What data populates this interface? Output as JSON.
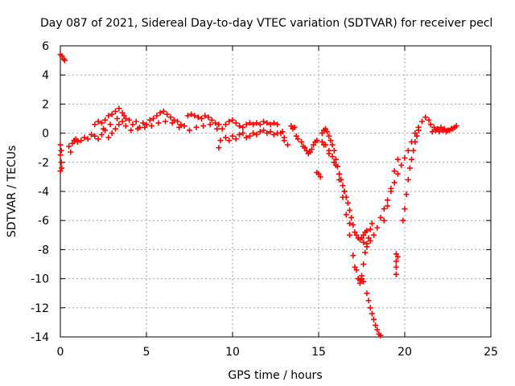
{
  "chart_data": {
    "type": "scatter",
    "title": "Day 087 of 2021, Sidereal Day-to-day VTEC variation (SDTVAR) for receiver pecl",
    "xlabel": "GPS time / hours",
    "ylabel": "SDTVAR / TECUs",
    "xlim": [
      0,
      25
    ],
    "ylim": [
      -14,
      6
    ],
    "x_ticks": [
      0,
      5,
      10,
      15,
      20,
      25
    ],
    "y_ticks": [
      6,
      4,
      2,
      0,
      -2,
      -4,
      -6,
      -8,
      -10,
      -12,
      -14
    ],
    "grid": true,
    "marker": "+",
    "series": [
      {
        "name": "SDTVAR",
        "color": "#ff0000",
        "points": [
          [
            0.0,
            5.4
          ],
          [
            0.1,
            5.3
          ],
          [
            0.2,
            5.1
          ],
          [
            0.25,
            5.0
          ],
          [
            0.0,
            -0.8
          ],
          [
            0.05,
            -1.2
          ],
          [
            0.0,
            -1.5
          ],
          [
            0.05,
            -2.0
          ],
          [
            0.0,
            -2.6
          ],
          [
            0.08,
            -2.4
          ],
          [
            0.5,
            -0.9
          ],
          [
            0.6,
            -1.3
          ],
          [
            0.7,
            -0.7
          ],
          [
            0.8,
            -0.5
          ],
          [
            0.9,
            -0.4
          ],
          [
            1.0,
            -0.6
          ],
          [
            1.2,
            -0.5
          ],
          [
            1.4,
            -0.3
          ],
          [
            1.6,
            -0.4
          ],
          [
            1.8,
            -0.1
          ],
          [
            2.0,
            0.6
          ],
          [
            2.2,
            0.8
          ],
          [
            2.4,
            0.7
          ],
          [
            2.6,
            0.9
          ],
          [
            2.8,
            1.2
          ],
          [
            3.0,
            1.3
          ],
          [
            3.2,
            1.5
          ],
          [
            3.4,
            1.7
          ],
          [
            3.6,
            1.4
          ],
          [
            3.8,
            1.0
          ],
          [
            2.0,
            -0.2
          ],
          [
            2.2,
            -0.4
          ],
          [
            2.4,
            -0.1
          ],
          [
            2.6,
            0.2
          ],
          [
            2.8,
            -0.3
          ],
          [
            3.0,
            0.0
          ],
          [
            3.2,
            0.3
          ],
          [
            3.4,
            0.6
          ],
          [
            3.6,
            0.8
          ],
          [
            3.8,
            0.5
          ],
          [
            2.5,
            0.3
          ],
          [
            2.9,
            0.6
          ],
          [
            3.3,
            1.0
          ],
          [
            3.7,
            1.2
          ],
          [
            4.0,
            0.9
          ],
          [
            4.2,
            0.6
          ],
          [
            4.4,
            0.8
          ],
          [
            4.6,
            0.4
          ],
          [
            4.8,
            0.7
          ],
          [
            5.0,
            0.6
          ],
          [
            5.2,
            0.9
          ],
          [
            5.4,
            1.0
          ],
          [
            5.6,
            1.2
          ],
          [
            5.8,
            1.4
          ],
          [
            6.0,
            1.5
          ],
          [
            6.2,
            1.3
          ],
          [
            6.4,
            1.1
          ],
          [
            6.6,
            0.9
          ],
          [
            6.8,
            0.8
          ],
          [
            7.0,
            0.6
          ],
          [
            7.2,
            0.5
          ],
          [
            4.1,
            0.2
          ],
          [
            4.5,
            0.3
          ],
          [
            4.9,
            0.4
          ],
          [
            5.3,
            0.5
          ],
          [
            5.7,
            0.7
          ],
          [
            6.1,
            0.8
          ],
          [
            6.5,
            0.7
          ],
          [
            6.9,
            0.4
          ],
          [
            7.4,
            1.2
          ],
          [
            7.6,
            1.3
          ],
          [
            7.8,
            1.2
          ],
          [
            8.0,
            1.1
          ],
          [
            8.2,
            1.0
          ],
          [
            8.4,
            1.2
          ],
          [
            8.6,
            1.1
          ],
          [
            8.8,
            0.9
          ],
          [
            9.0,
            0.7
          ],
          [
            9.2,
            0.6
          ],
          [
            7.5,
            0.2
          ],
          [
            7.9,
            0.4
          ],
          [
            8.3,
            0.5
          ],
          [
            8.7,
            0.6
          ],
          [
            9.1,
            0.3
          ],
          [
            9.3,
            -0.5
          ],
          [
            9.2,
            -1.0
          ],
          [
            9.4,
            0.3
          ],
          [
            9.6,
            0.6
          ],
          [
            9.8,
            0.8
          ],
          [
            10.0,
            0.9
          ],
          [
            10.2,
            0.7
          ],
          [
            10.4,
            0.5
          ],
          [
            10.6,
            0.4
          ],
          [
            10.8,
            0.6
          ],
          [
            11.0,
            0.7
          ],
          [
            11.2,
            0.6
          ],
          [
            11.4,
            0.7
          ],
          [
            11.6,
            0.6
          ],
          [
            11.8,
            0.8
          ],
          [
            12.0,
            0.7
          ],
          [
            12.2,
            0.6
          ],
          [
            12.4,
            0.7
          ],
          [
            12.6,
            0.6
          ],
          [
            9.6,
            -0.3
          ],
          [
            9.8,
            -0.5
          ],
          [
            10.0,
            -0.2
          ],
          [
            10.2,
            -0.4
          ],
          [
            10.4,
            -0.1
          ],
          [
            10.6,
            0.0
          ],
          [
            10.8,
            -0.3
          ],
          [
            11.0,
            -0.2
          ],
          [
            11.2,
            0.0
          ],
          [
            11.4,
            -0.1
          ],
          [
            11.6,
            0.1
          ],
          [
            11.8,
            0.2
          ],
          [
            12.0,
            0.0
          ],
          [
            12.2,
            0.1
          ],
          [
            12.4,
            -0.1
          ],
          [
            12.6,
            0.0
          ],
          [
            12.8,
            0.0
          ],
          [
            13.0,
            -0.3
          ],
          [
            12.9,
            0.1
          ],
          [
            13.0,
            -0.5
          ],
          [
            13.2,
            -0.8
          ],
          [
            13.4,
            0.5
          ],
          [
            13.5,
            0.3
          ],
          [
            13.6,
            0.4
          ],
          [
            13.7,
            -0.2
          ],
          [
            13.8,
            -0.4
          ],
          [
            14.0,
            -0.6
          ],
          [
            14.1,
            -0.9
          ],
          [
            14.2,
            -1.0
          ],
          [
            14.3,
            -1.2
          ],
          [
            14.4,
            -1.4
          ],
          [
            14.5,
            -1.3
          ],
          [
            14.6,
            -1.1
          ],
          [
            14.7,
            -0.8
          ],
          [
            14.8,
            -0.6
          ],
          [
            14.9,
            -0.5
          ],
          [
            14.9,
            -2.7
          ],
          [
            15.0,
            -2.8
          ],
          [
            15.1,
            -3.0
          ],
          [
            15.2,
            0.0
          ],
          [
            15.3,
            0.2
          ],
          [
            15.4,
            0.3
          ],
          [
            15.5,
            0.1
          ],
          [
            15.6,
            -0.2
          ],
          [
            15.7,
            -0.5
          ],
          [
            15.8,
            -0.8
          ],
          [
            15.9,
            -1.2
          ],
          [
            16.0,
            -1.8
          ],
          [
            16.1,
            -2.3
          ],
          [
            16.2,
            -2.8
          ],
          [
            16.3,
            -3.2
          ],
          [
            16.4,
            -3.6
          ],
          [
            16.5,
            -4.0
          ],
          [
            16.6,
            -4.4
          ],
          [
            16.7,
            -4.8
          ],
          [
            16.8,
            -5.3
          ],
          [
            16.9,
            -5.8
          ],
          [
            17.0,
            -6.3
          ],
          [
            17.1,
            -6.8
          ],
          [
            17.2,
            -7.0
          ],
          [
            17.3,
            -7.2
          ],
          [
            17.4,
            -7.3
          ],
          [
            17.5,
            -7.2
          ],
          [
            17.6,
            -7.0
          ],
          [
            17.7,
            -6.8
          ],
          [
            17.8,
            -6.7
          ],
          [
            15.2,
            -0.6
          ],
          [
            15.4,
            -0.8
          ],
          [
            15.6,
            -1.2
          ],
          [
            15.8,
            -1.6
          ],
          [
            16.0,
            -2.2
          ],
          [
            16.2,
            -3.2
          ],
          [
            16.4,
            -4.4
          ],
          [
            16.6,
            -5.6
          ],
          [
            16.8,
            -7.0
          ],
          [
            17.0,
            -8.4
          ],
          [
            17.2,
            -9.4
          ],
          [
            17.3,
            -10.0
          ],
          [
            17.4,
            -10.1
          ],
          [
            17.5,
            -9.8
          ],
          [
            17.6,
            -9.0
          ],
          [
            17.7,
            -8.2
          ],
          [
            17.8,
            -7.6
          ],
          [
            17.9,
            -7.2
          ],
          [
            18.0,
            -6.6
          ],
          [
            18.1,
            -6.2
          ],
          [
            15.3,
            -0.8
          ],
          [
            15.6,
            -1.4
          ],
          [
            15.9,
            -2.0
          ],
          [
            16.2,
            -2.8
          ],
          [
            16.5,
            -4.0
          ],
          [
            16.8,
            -6.2
          ],
          [
            17.1,
            -9.2
          ],
          [
            17.4,
            -10.3
          ],
          [
            17.5,
            -10.0
          ],
          [
            17.6,
            -10.2
          ],
          [
            17.8,
            -11.0
          ],
          [
            17.9,
            -11.5
          ],
          [
            18.0,
            -12.0
          ],
          [
            18.1,
            -12.4
          ],
          [
            18.2,
            -12.8
          ],
          [
            18.3,
            -13.2
          ],
          [
            18.4,
            -13.5
          ],
          [
            18.5,
            -13.8
          ],
          [
            18.6,
            -13.9
          ],
          [
            17.6,
            -7.5
          ],
          [
            17.8,
            -7.8
          ],
          [
            18.0,
            -7.4
          ],
          [
            18.2,
            -7.0
          ],
          [
            18.4,
            -6.5
          ],
          [
            18.6,
            -5.8
          ],
          [
            18.8,
            -5.2
          ],
          [
            19.0,
            -4.6
          ],
          [
            19.2,
            -4.0
          ],
          [
            19.4,
            -3.4
          ],
          [
            19.6,
            -2.8
          ],
          [
            19.8,
            -2.2
          ],
          [
            20.0,
            -1.7
          ],
          [
            20.2,
            -1.2
          ],
          [
            20.4,
            -0.6
          ],
          [
            20.6,
            0.0
          ],
          [
            20.8,
            0.4
          ],
          [
            21.0,
            0.8
          ],
          [
            21.2,
            1.1
          ],
          [
            21.4,
            0.9
          ],
          [
            18.8,
            -6.0
          ],
          [
            19.0,
            -5.0
          ],
          [
            19.2,
            -3.8
          ],
          [
            19.4,
            -2.6
          ],
          [
            19.6,
            -1.8
          ],
          [
            19.5,
            -8.3
          ],
          [
            19.5,
            -8.8
          ],
          [
            19.5,
            -9.2
          ],
          [
            19.5,
            -9.7
          ],
          [
            19.6,
            -8.5
          ],
          [
            19.9,
            -6.0
          ],
          [
            20.0,
            -5.2
          ],
          [
            20.1,
            -4.2
          ],
          [
            20.2,
            -3.2
          ],
          [
            20.3,
            -2.4
          ],
          [
            20.4,
            -1.8
          ],
          [
            20.5,
            -1.2
          ],
          [
            20.6,
            -0.6
          ],
          [
            20.7,
            -0.2
          ],
          [
            20.8,
            0.2
          ],
          [
            21.5,
            0.6
          ],
          [
            21.7,
            0.4
          ],
          [
            21.9,
            0.3
          ],
          [
            22.1,
            0.4
          ],
          [
            22.3,
            0.3
          ],
          [
            22.5,
            0.2
          ],
          [
            22.7,
            0.3
          ],
          [
            22.9,
            0.4
          ],
          [
            21.6,
            0.1
          ],
          [
            21.8,
            0.2
          ],
          [
            22.0,
            0.1
          ],
          [
            22.2,
            0.2
          ],
          [
            22.4,
            0.1
          ],
          [
            22.6,
            0.2
          ],
          [
            22.8,
            0.3
          ],
          [
            23.0,
            0.5
          ]
        ]
      }
    ]
  }
}
